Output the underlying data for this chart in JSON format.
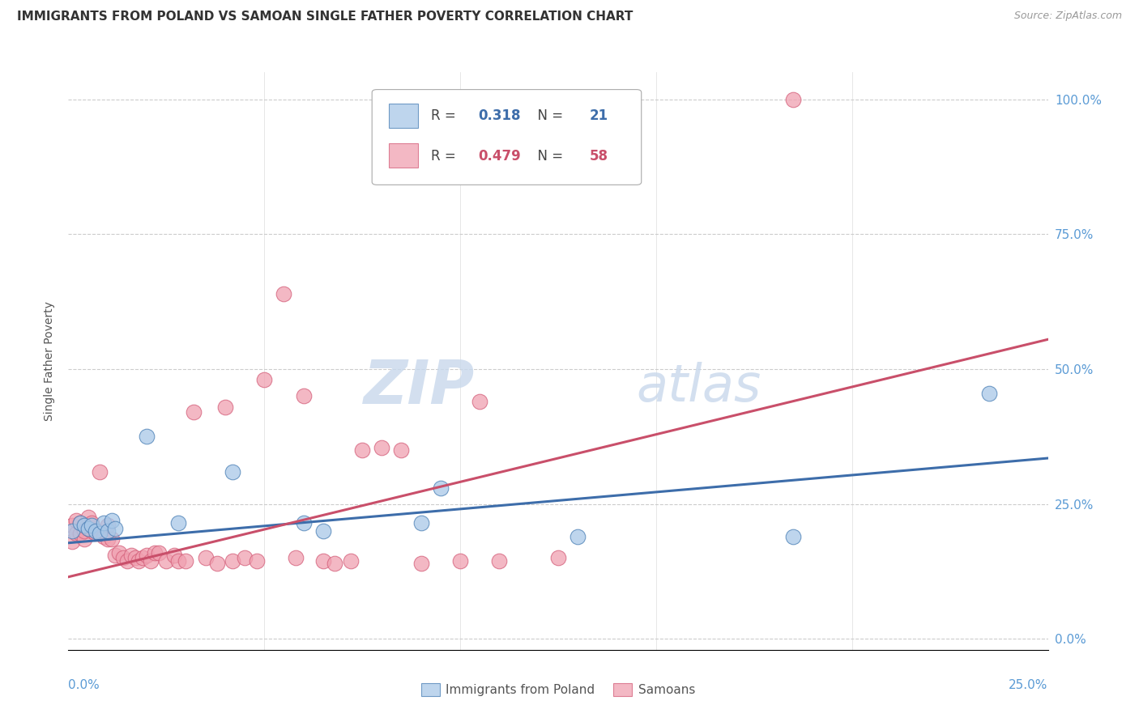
{
  "title": "IMMIGRANTS FROM POLAND VS SAMOAN SINGLE FATHER POVERTY CORRELATION CHART",
  "source": "Source: ZipAtlas.com",
  "ylabel": "Single Father Poverty",
  "legend_label1": "Immigrants from Poland",
  "legend_label2": "Samoans",
  "legend_r1_val": "0.318",
  "legend_n1_val": "21",
  "legend_r2_val": "0.479",
  "legend_n2_val": "58",
  "blue_color": "#a8c8e8",
  "pink_color": "#f0a0b0",
  "blue_edge_color": "#4a7fb5",
  "pink_edge_color": "#d45f7a",
  "blue_line_color": "#3d6daa",
  "pink_line_color": "#c94f6a",
  "watermark_zip_color": "#c8d8ec",
  "watermark_atlas_color": "#c8d8ec",
  "blue_scatter_x": [
    0.001,
    0.003,
    0.004,
    0.005,
    0.006,
    0.007,
    0.008,
    0.009,
    0.01,
    0.011,
    0.012,
    0.02,
    0.028,
    0.042,
    0.06,
    0.065,
    0.09,
    0.095,
    0.13,
    0.185,
    0.235
  ],
  "blue_scatter_y": [
    0.2,
    0.215,
    0.21,
    0.205,
    0.21,
    0.2,
    0.195,
    0.215,
    0.2,
    0.22,
    0.205,
    0.375,
    0.215,
    0.31,
    0.215,
    0.2,
    0.215,
    0.28,
    0.19,
    0.19,
    0.455
  ],
  "pink_scatter_x": [
    0.001,
    0.001,
    0.002,
    0.002,
    0.003,
    0.003,
    0.004,
    0.004,
    0.005,
    0.005,
    0.006,
    0.006,
    0.007,
    0.008,
    0.008,
    0.009,
    0.01,
    0.01,
    0.011,
    0.012,
    0.013,
    0.014,
    0.015,
    0.016,
    0.017,
    0.018,
    0.019,
    0.02,
    0.021,
    0.022,
    0.023,
    0.025,
    0.027,
    0.028,
    0.03,
    0.032,
    0.035,
    0.038,
    0.04,
    0.042,
    0.045,
    0.048,
    0.05,
    0.055,
    0.058,
    0.06,
    0.065,
    0.068,
    0.072,
    0.075,
    0.08,
    0.085,
    0.09,
    0.1,
    0.105,
    0.11,
    0.125,
    0.185
  ],
  "pink_scatter_y": [
    0.18,
    0.21,
    0.195,
    0.22,
    0.195,
    0.215,
    0.185,
    0.2,
    0.205,
    0.225,
    0.2,
    0.215,
    0.195,
    0.195,
    0.31,
    0.19,
    0.185,
    0.21,
    0.185,
    0.155,
    0.16,
    0.15,
    0.145,
    0.155,
    0.15,
    0.145,
    0.15,
    0.155,
    0.145,
    0.16,
    0.16,
    0.145,
    0.155,
    0.145,
    0.145,
    0.42,
    0.15,
    0.14,
    0.43,
    0.145,
    0.15,
    0.145,
    0.48,
    0.64,
    0.15,
    0.45,
    0.145,
    0.14,
    0.145,
    0.35,
    0.355,
    0.35,
    0.14,
    0.145,
    0.44,
    0.145,
    0.15,
    1.0
  ],
  "xlim": [
    0.0,
    0.25
  ],
  "ylim": [
    -0.02,
    1.05
  ],
  "blue_line_x": [
    0.0,
    0.25
  ],
  "blue_line_y": [
    0.178,
    0.335
  ],
  "pink_line_x": [
    0.0,
    0.25
  ],
  "pink_line_y": [
    0.115,
    0.555
  ]
}
